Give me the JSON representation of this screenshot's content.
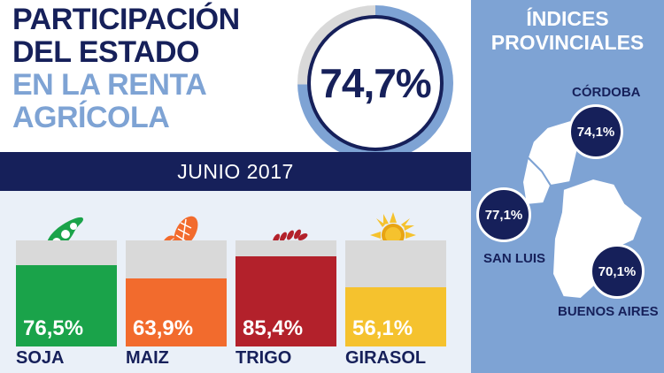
{
  "header": {
    "line1": "PARTICIPACIÓN",
    "line2": "DEL ESTADO",
    "line3": "EN LA RENTA",
    "line4": "AGRÍCOLA"
  },
  "total": {
    "value": "74,7%",
    "fraction": 0.747,
    "colors": {
      "ring": "#7ea3d4",
      "track": "#d9d9d9",
      "border": "#16205a"
    }
  },
  "date": "JUNIO 2017",
  "crops": [
    {
      "name": "SOJA",
      "value_label": "76,5%",
      "fraction": 0.765,
      "color": "#1aa34a",
      "icon": "soybean-pod-icon"
    },
    {
      "name": "MAIZ",
      "value_label": "63,9%",
      "fraction": 0.639,
      "color": "#f26b2d",
      "icon": "corn-cob-icon"
    },
    {
      "name": "TRIGO",
      "value_label": "85,4%",
      "fraction": 0.854,
      "color": "#b3212b",
      "icon": "wheat-stalk-icon"
    },
    {
      "name": "GIRASOL",
      "value_label": "56,1%",
      "fraction": 0.561,
      "color": "#f5c22e",
      "icon": "sunflower-icon"
    }
  ],
  "provinces": {
    "title_line1": "ÍNDICES",
    "title_line2": "PROVINCIALES",
    "items": [
      {
        "name": "CÓRDOBA",
        "value": "74,1%"
      },
      {
        "name": "SAN LUIS",
        "value": "77,1%"
      },
      {
        "name": "BUENOS AIRES",
        "value": "70,1%"
      }
    ]
  },
  "colors": {
    "navy": "#16205a",
    "light_blue": "#7ea3d4",
    "bar_bg": "#d9d9d9"
  }
}
